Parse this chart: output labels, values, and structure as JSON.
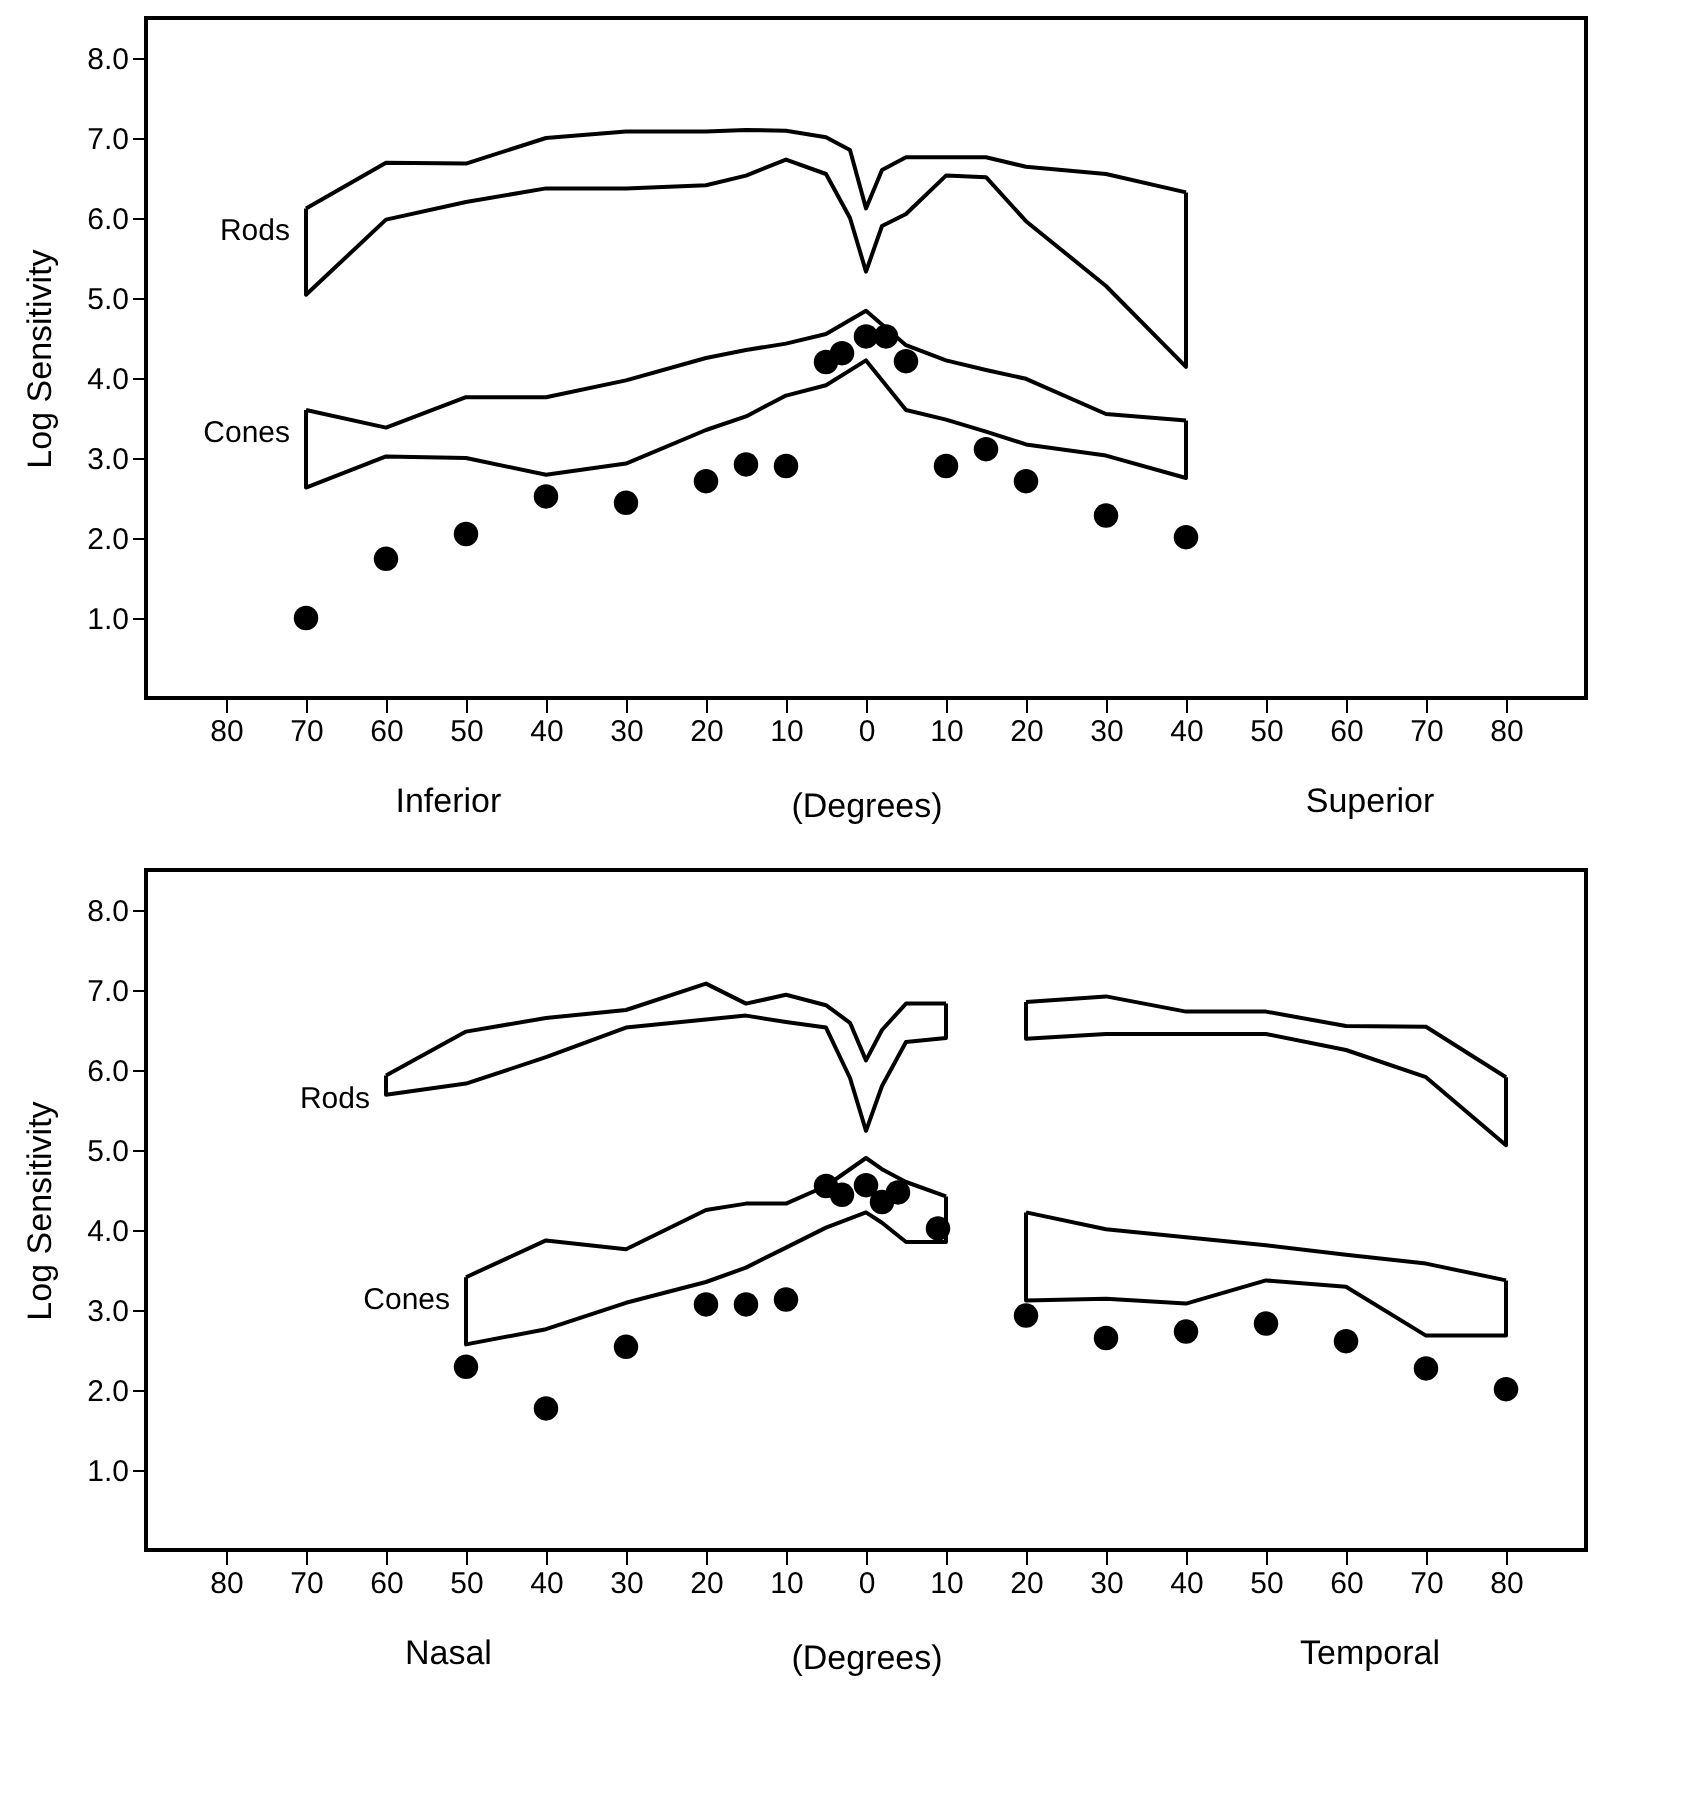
{
  "chart_data": [
    {
      "type": "line",
      "xlabel": "(Degrees)",
      "ylabel": "Log Sensitivity",
      "annotations": [
        "Inferior",
        "Superior"
      ],
      "xlim": [
        -90,
        90
      ],
      "ylim": [
        0,
        8.5
      ],
      "grid": false,
      "xticks": [
        {
          "value": -80,
          "label": "80"
        },
        {
          "value": -70,
          "label": "70"
        },
        {
          "value": -60,
          "label": "60"
        },
        {
          "value": -50,
          "label": "50"
        },
        {
          "value": -40,
          "label": "40"
        },
        {
          "value": -30,
          "label": "30"
        },
        {
          "value": -20,
          "label": "20"
        },
        {
          "value": -10,
          "label": "10"
        },
        0,
        10,
        20,
        30,
        40,
        50,
        60,
        70,
        80
      ],
      "yticks": [
        {
          "value": 1,
          "label": "1.0"
        },
        {
          "value": 2,
          "label": "2.0"
        },
        {
          "value": 3,
          "label": "3.0"
        },
        {
          "value": 4,
          "label": "4.0"
        },
        {
          "value": 5,
          "label": "5.0"
        },
        {
          "value": 6,
          "label": "6.0"
        },
        {
          "value": 7,
          "label": "7.0"
        },
        {
          "value": 8,
          "label": "8.0"
        }
      ],
      "series": [
        {
          "name": "Rods",
          "color": "#000000",
          "x": [
            -70,
            -60,
            -50,
            -40,
            -30,
            -20,
            -15,
            -10,
            -5,
            -2,
            0,
            2,
            5,
            10,
            15,
            20,
            30,
            40
          ],
          "values": [
            6.12,
            6.69,
            6.68,
            7.0,
            7.08,
            7.08,
            7.1,
            7.09,
            7.01,
            6.85,
            6.12,
            6.6,
            6.76,
            6.76,
            6.76,
            6.64,
            6.55,
            6.32
          ]
        },
        {
          "color": "#000000",
          "x": [
            -70,
            -70,
            -60,
            -50,
            -40,
            -30,
            -20,
            -15,
            -10,
            -5,
            -2,
            0,
            2,
            5,
            10,
            15,
            20,
            30,
            40,
            40
          ],
          "values": [
            6.12,
            5.04,
            5.98,
            6.2,
            6.37,
            6.37,
            6.41,
            6.53,
            6.73,
            6.55,
            6.0,
            5.33,
            5.9,
            6.05,
            6.53,
            6.51,
            5.96,
            5.15,
            4.14,
            6.32
          ]
        },
        {
          "name": "Cones",
          "color": "#000000",
          "x": [
            -70,
            -60,
            -50,
            -40,
            -30,
            -20,
            -15,
            -10,
            -5,
            0,
            5,
            10,
            15,
            20,
            30,
            40
          ],
          "values": [
            3.6,
            3.38,
            3.76,
            3.76,
            3.97,
            4.25,
            4.35,
            4.43,
            4.55,
            4.84,
            4.41,
            4.22,
            4.1,
            3.99,
            3.55,
            3.47
          ]
        },
        {
          "color": "#000000",
          "x": [
            -70,
            -70,
            -60,
            -50,
            -40,
            -30,
            -20,
            -15,
            -10,
            -5,
            0,
            5,
            10,
            15,
            20,
            30,
            40,
            40
          ],
          "values": [
            3.6,
            2.63,
            3.02,
            3.0,
            2.79,
            2.93,
            3.35,
            3.52,
            3.78,
            3.91,
            4.22,
            3.6,
            3.48,
            3.33,
            3.17,
            3.03,
            2.75,
            3.47
          ]
        },
        {
          "type": "scatter",
          "color": "#000000",
          "marker": "circle",
          "x": [
            -70,
            -60,
            -50,
            -40,
            -30,
            -20,
            -15,
            -10,
            -5,
            -3,
            0,
            2.5,
            5,
            10,
            15,
            20,
            30,
            40
          ],
          "values": [
            1.0,
            1.74,
            2.05,
            2.52,
            2.44,
            2.71,
            2.92,
            2.9,
            4.2,
            4.31,
            4.52,
            4.52,
            4.21,
            2.9,
            3.11,
            2.71,
            2.28,
            2.01
          ]
        }
      ]
    },
    {
      "type": "line",
      "xlabel": "(Degrees)",
      "ylabel": "Log Sensitivity",
      "annotations": [
        "Nasal",
        "Temporal"
      ],
      "xlim": [
        -90,
        90
      ],
      "ylim": [
        0,
        8.5
      ],
      "grid": false,
      "xticks": [
        {
          "value": -80,
          "label": "80"
        },
        {
          "value": -70,
          "label": "70"
        },
        {
          "value": -60,
          "label": "60"
        },
        {
          "value": -50,
          "label": "50"
        },
        {
          "value": -40,
          "label": "40"
        },
        {
          "value": -30,
          "label": "30"
        },
        {
          "value": -20,
          "label": "20"
        },
        {
          "value": -10,
          "label": "10"
        },
        0,
        10,
        20,
        30,
        40,
        50,
        60,
        70,
        80
      ],
      "yticks": [
        {
          "value": 1,
          "label": "1.0"
        },
        {
          "value": 2,
          "label": "2.0"
        },
        {
          "value": 3,
          "label": "3.0"
        },
        {
          "value": 4,
          "label": "4.0"
        },
        {
          "value": 5,
          "label": "5.0"
        },
        {
          "value": 6,
          "label": "6.0"
        },
        {
          "value": 7,
          "label": "7.0"
        },
        {
          "value": 8,
          "label": "8.0"
        }
      ],
      "series": [
        {
          "name": "Rods",
          "color": "#000000",
          "x": [
            -60,
            -50,
            -40,
            -30,
            -20,
            -15,
            -10,
            -5,
            -2,
            0,
            2,
            5,
            10
          ],
          "values": [
            5.93,
            6.48,
            6.65,
            6.75,
            7.08,
            6.83,
            6.94,
            6.81,
            6.59,
            6.12,
            6.5,
            6.83,
            6.83
          ]
        },
        {
          "color": "#000000",
          "x": [
            -60,
            -60,
            -50,
            -40,
            -30,
            -20,
            -15,
            -10,
            -5,
            -2,
            0,
            2,
            5,
            10,
            10
          ],
          "values": [
            5.93,
            5.69,
            5.83,
            6.16,
            6.53,
            6.63,
            6.68,
            6.6,
            6.53,
            5.9,
            5.24,
            5.8,
            6.35,
            6.4,
            6.83
          ]
        },
        {
          "color": "#000000",
          "x": [
            20,
            30,
            40,
            50,
            60,
            70,
            80
          ],
          "values": [
            6.85,
            6.92,
            6.73,
            6.73,
            6.55,
            6.54,
            5.91
          ]
        },
        {
          "color": "#000000",
          "x": [
            20,
            20,
            30,
            40,
            50,
            60,
            70,
            80,
            80
          ],
          "values": [
            6.85,
            6.39,
            6.45,
            6.45,
            6.45,
            6.25,
            5.91,
            5.06,
            5.91
          ]
        },
        {
          "name": "Cones",
          "color": "#000000",
          "x": [
            -50,
            -40,
            -30,
            -20,
            -15,
            -10,
            -5,
            0,
            2,
            5,
            10
          ],
          "values": [
            3.41,
            3.87,
            3.76,
            4.25,
            4.33,
            4.33,
            4.55,
            4.9,
            4.76,
            4.6,
            4.42
          ]
        },
        {
          "color": "#000000",
          "x": [
            -50,
            -50,
            -40,
            -30,
            -20,
            -15,
            -10,
            -5,
            0,
            2,
            5,
            10,
            10
          ],
          "values": [
            3.41,
            2.57,
            2.76,
            3.09,
            3.35,
            3.53,
            3.78,
            4.03,
            4.22,
            4.09,
            3.85,
            3.85,
            4.42
          ]
        },
        {
          "color": "#000000",
          "x": [
            20,
            30,
            40,
            50,
            60,
            70,
            80
          ],
          "values": [
            4.22,
            4.01,
            3.91,
            3.81,
            3.69,
            3.58,
            3.37
          ]
        },
        {
          "color": "#000000",
          "x": [
            20,
            20,
            30,
            40,
            50,
            60,
            70,
            80,
            80
          ],
          "values": [
            4.22,
            3.12,
            3.14,
            3.08,
            3.37,
            3.29,
            2.68,
            2.68,
            3.37
          ]
        },
        {
          "type": "scatter",
          "color": "#000000",
          "marker": "circle",
          "x": [
            -50,
            -40,
            -30,
            -20,
            -15,
            -10,
            -5,
            -3,
            0,
            2,
            4,
            9,
            20,
            30,
            40,
            50,
            60,
            70,
            80
          ],
          "values": [
            2.29,
            1.77,
            2.54,
            3.07,
            3.07,
            3.13,
            4.55,
            4.44,
            4.56,
            4.35,
            4.47,
            4.02,
            2.93,
            2.65,
            2.73,
            2.83,
            2.61,
            2.27,
            2.01
          ]
        }
      ]
    }
  ]
}
